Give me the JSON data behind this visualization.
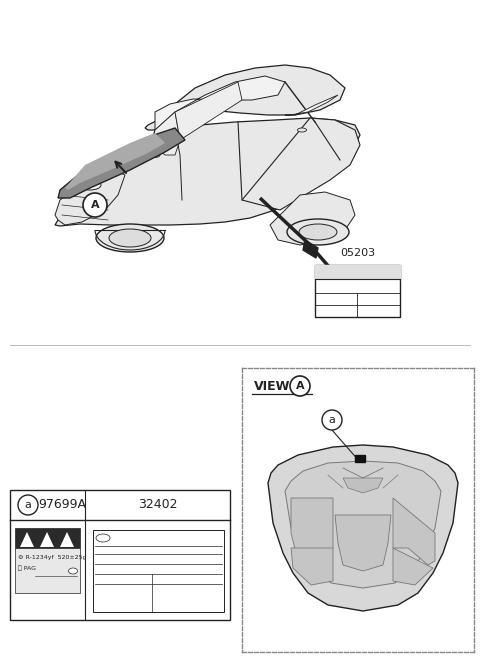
{
  "bg_color": "#ffffff",
  "part_number_main": "05203",
  "table_part1": "97699A",
  "table_part2": "32402",
  "line_color": "#222222",
  "gray_fill": "#e8e8e8",
  "hood_fill": "#999999",
  "dark_fill": "#444444",
  "label_gray": "#d0d0d0",
  "panel_gray": "#c8c8c8",
  "dash_color": "#888888"
}
